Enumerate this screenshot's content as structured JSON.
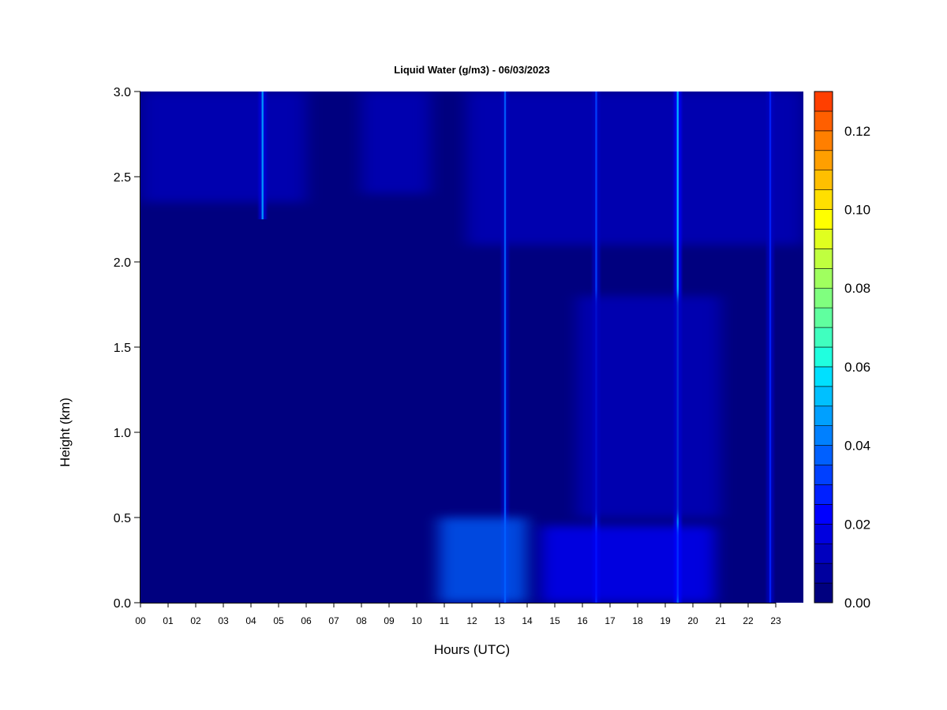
{
  "chart_data": {
    "type": "heatmap",
    "title": "Liquid Water (g/m3) - 06/03/2023",
    "xlabel": "Hours (UTC)",
    "ylabel": "Height (km)",
    "xlim": [
      0,
      24
    ],
    "ylim": [
      0.0,
      3.0
    ],
    "x_tick_labels": [
      "00",
      "01",
      "02",
      "03",
      "04",
      "05",
      "06",
      "07",
      "08",
      "09",
      "10",
      "11",
      "12",
      "13",
      "14",
      "15",
      "16",
      "17",
      "18",
      "19",
      "20",
      "21",
      "22",
      "23"
    ],
    "y_ticks": [
      0.0,
      0.5,
      1.0,
      1.5,
      2.0,
      2.5,
      3.0
    ],
    "y_tick_labels": [
      "0.0",
      "0.5",
      "1.0",
      "1.5",
      "2.0",
      "2.5",
      "3.0"
    ],
    "colorbar": {
      "range": [
        0.0,
        0.13
      ],
      "step": 0.005,
      "tick_values": [
        0.0,
        0.02,
        0.04,
        0.06,
        0.08,
        0.1,
        0.12
      ],
      "tick_labels": [
        "0.00",
        "0.02",
        "0.04",
        "0.06",
        "0.08",
        "0.10",
        "0.12"
      ],
      "colors": [
        "#00007F",
        "#00009F",
        "#0000BF",
        "#0000DF",
        "#0000FF",
        "#0020FF",
        "#0040FF",
        "#0060FF",
        "#0080FF",
        "#00A0FF",
        "#00C0FF",
        "#00E0FF",
        "#20FFDF",
        "#40FFBF",
        "#60FF9F",
        "#80FF7F",
        "#A0FF5F",
        "#C0FF3F",
        "#E0FF1F",
        "#FFFF00",
        "#FFDF00",
        "#FFBF00",
        "#FF9F00",
        "#FF7F00",
        "#FF5F00",
        "#FF3F00"
      ]
    },
    "features": [
      {
        "kind": "cloud_layer",
        "hours": [
          0.0,
          6.0
        ],
        "height_km": [
          2.35,
          3.0
        ],
        "value": 0.012
      },
      {
        "kind": "cloud_layer",
        "hours": [
          8.0,
          10.5
        ],
        "height_km": [
          2.4,
          3.0
        ],
        "value": 0.01
      },
      {
        "kind": "cloud_layer",
        "hours": [
          11.8,
          24.0
        ],
        "height_km": [
          2.1,
          3.0
        ],
        "value": 0.014
      },
      {
        "kind": "spike",
        "hour": 4.42,
        "height_km": [
          2.25,
          3.0
        ],
        "value": 0.045
      },
      {
        "kind": "spike",
        "hour": 13.2,
        "height_km": [
          0.0,
          3.0
        ],
        "value": 0.035
      },
      {
        "kind": "spike",
        "hour": 16.5,
        "height_km": [
          0.0,
          3.0
        ],
        "value": 0.03
      },
      {
        "kind": "spike",
        "hour": 19.45,
        "height_km": [
          0.0,
          3.0
        ],
        "value": 0.05
      },
      {
        "kind": "spike",
        "hour": 22.8,
        "height_km": [
          0.0,
          3.0
        ],
        "value": 0.025
      },
      {
        "kind": "low_cloud",
        "hours": [
          10.8,
          14.0
        ],
        "height_km": [
          0.0,
          0.5
        ],
        "value": 0.035
      },
      {
        "kind": "low_cloud",
        "hours": [
          14.5,
          20.8
        ],
        "height_km": [
          0.0,
          0.45
        ],
        "value": 0.022
      },
      {
        "kind": "mid_cloud",
        "hours": [
          15.8,
          21.0
        ],
        "height_km": [
          0.5,
          1.8
        ],
        "value": 0.01
      }
    ]
  }
}
